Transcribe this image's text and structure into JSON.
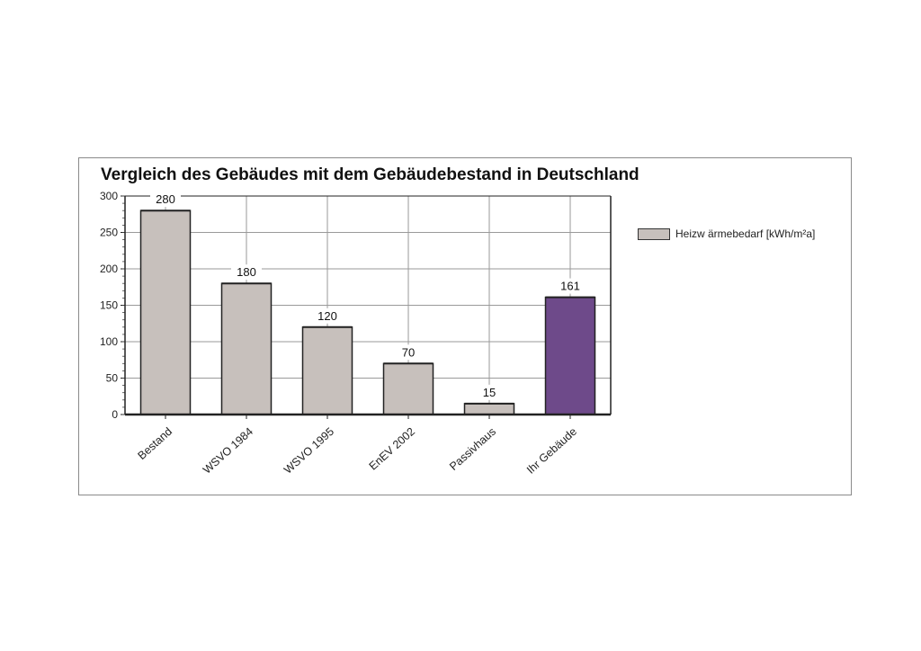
{
  "chart_data": {
    "type": "bar",
    "title": "Vergleich des Gebäudes mit dem Gebäudebestand in Deutschland",
    "categories": [
      "Bestand",
      "WSVO 1984",
      "WSVO 1995",
      "EnEV 2002",
      "Passivhaus",
      "Ihr Gebäude"
    ],
    "series": [
      {
        "name": "Heizw ärmebedarf [kWh/m²a]",
        "values": [
          280,
          180,
          120,
          70,
          15,
          161
        ]
      }
    ],
    "data_labels": [
      "280",
      "180",
      "120",
      "70",
      "15",
      "161"
    ],
    "bar_colors": [
      "#c7c0bc",
      "#c7c0bc",
      "#c7c0bc",
      "#c7c0bc",
      "#c7c0bc",
      "#6e4a8a"
    ],
    "ylim": [
      0,
      300
    ],
    "yticks": [
      0,
      50,
      100,
      150,
      200,
      250,
      300
    ],
    "ytick_labels": [
      "0",
      "50",
      "100",
      "150",
      "200",
      "250",
      "300"
    ],
    "grid": true,
    "legend_position": "right"
  }
}
